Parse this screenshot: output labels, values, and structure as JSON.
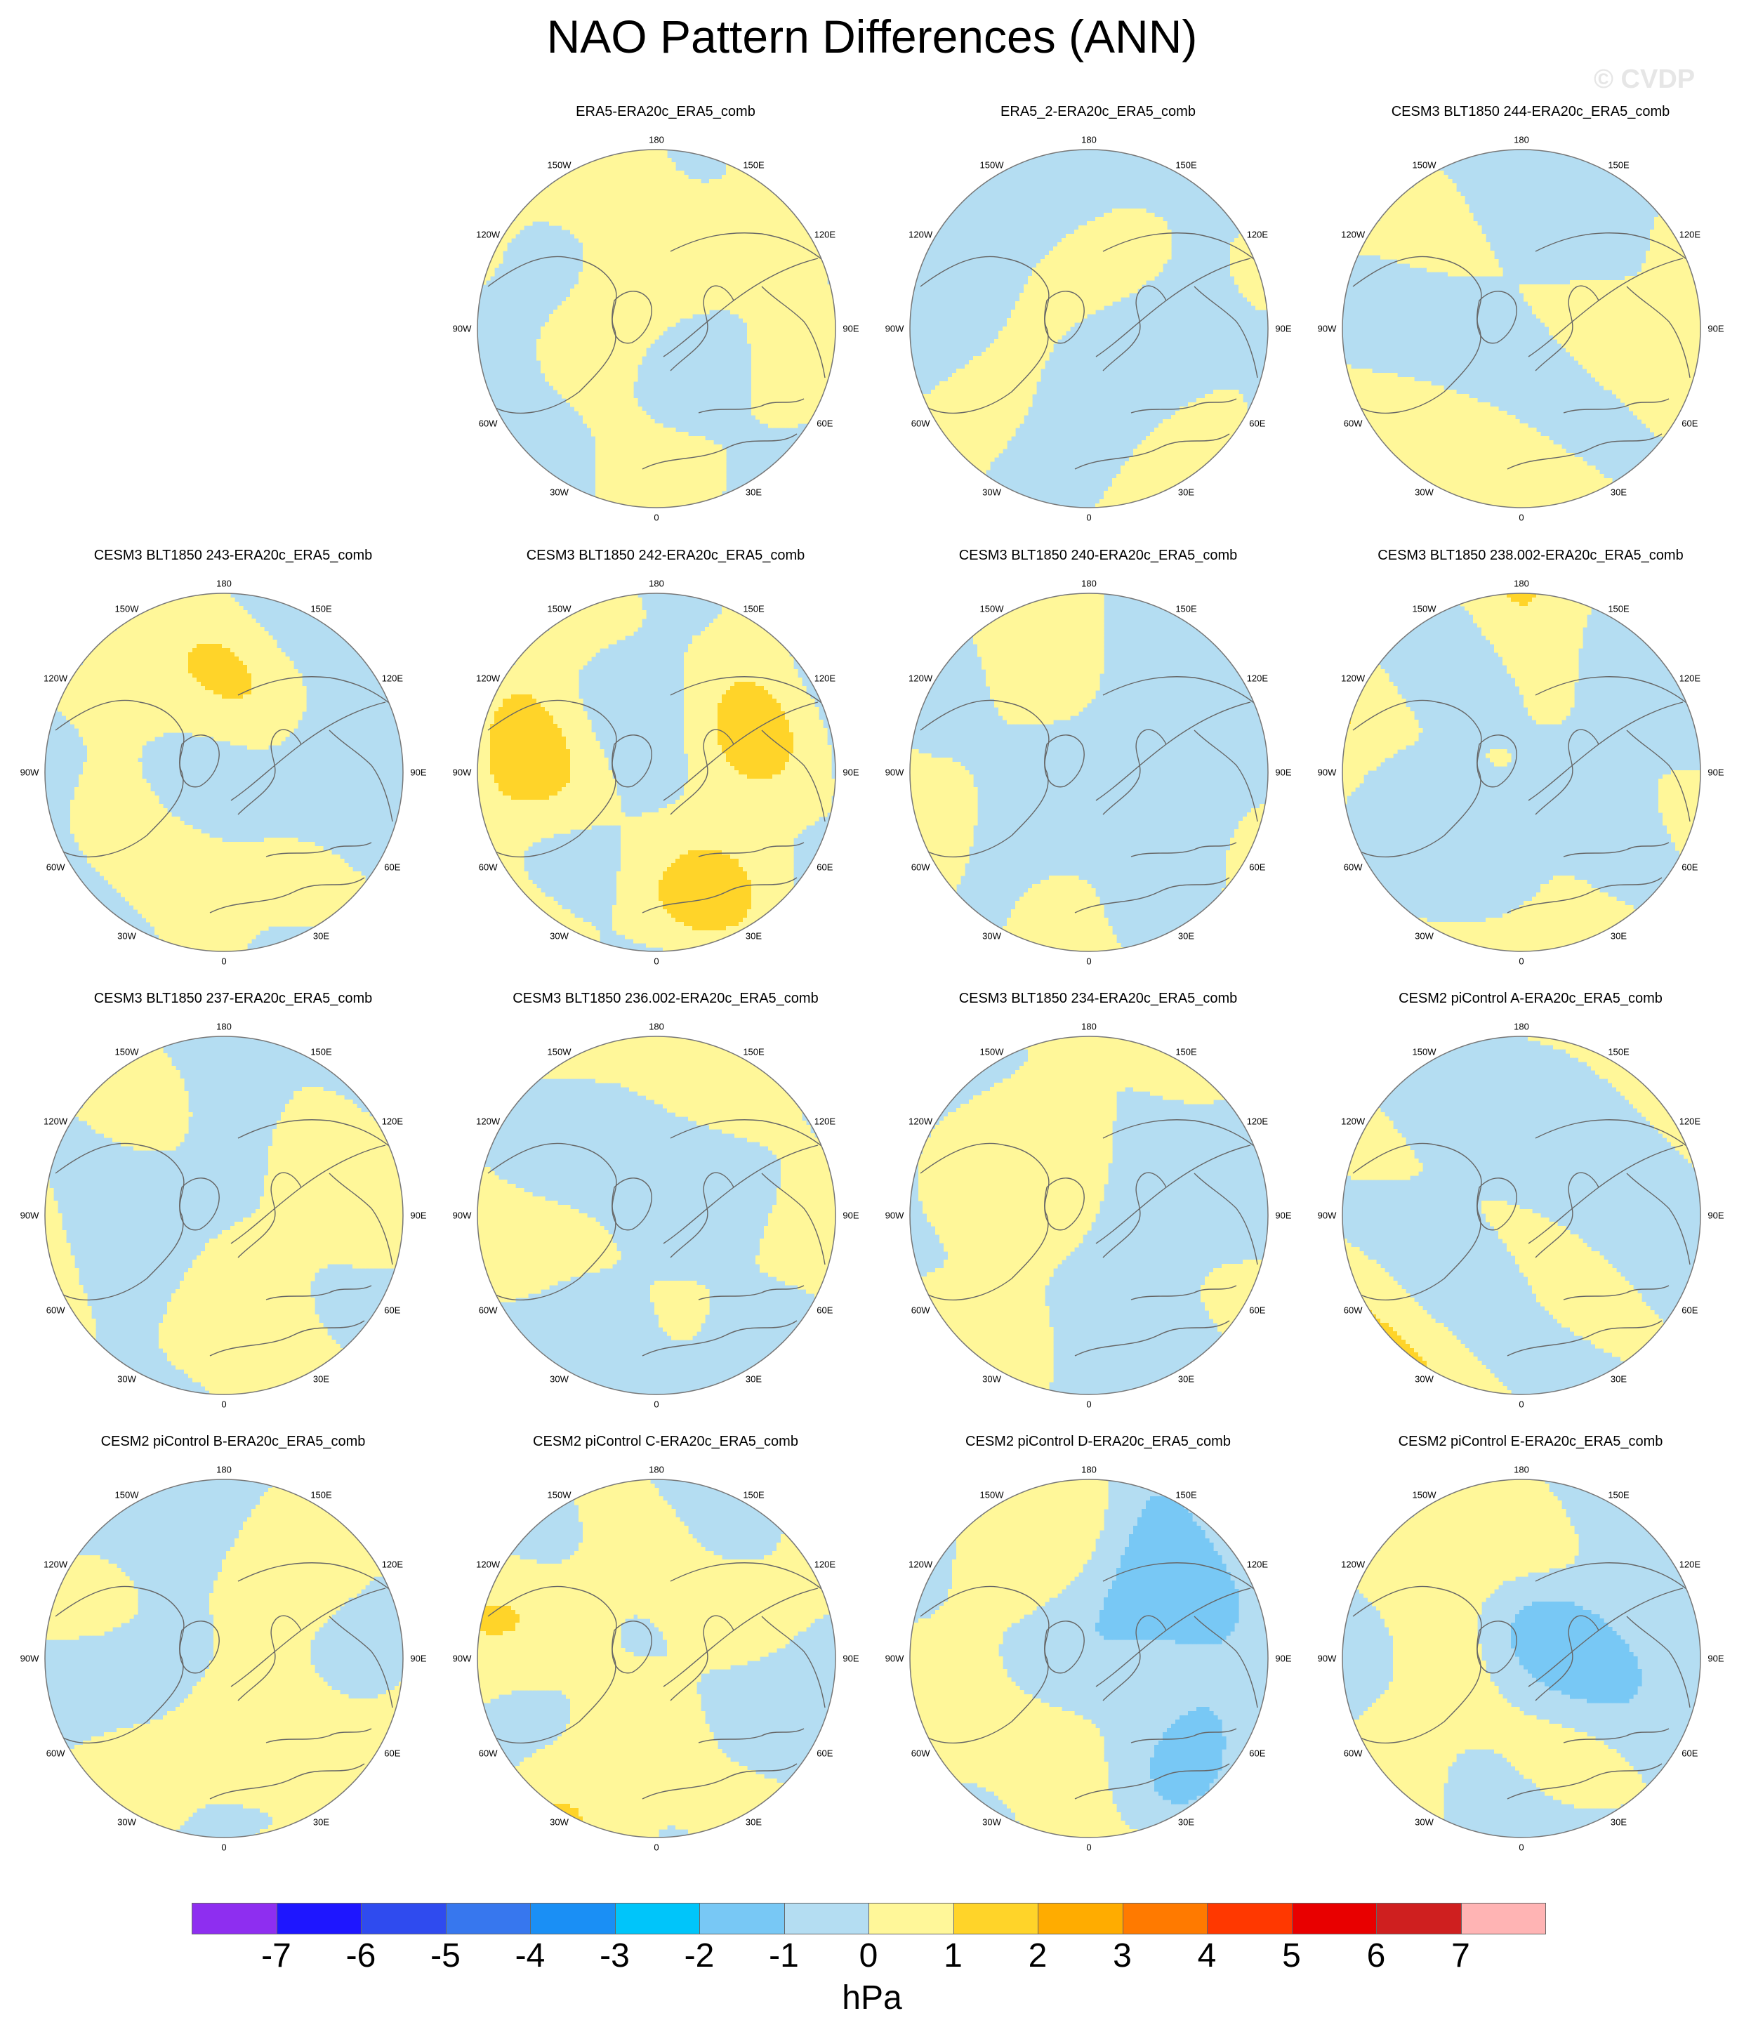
{
  "title": "NAO Pattern Differences (ANN)",
  "watermark": "© CVDP",
  "units": "hPa",
  "longitude_labels": [
    "180",
    "150E",
    "120E",
    "90E",
    "60E",
    "30E",
    "0",
    "30W",
    "60W",
    "90W",
    "120W",
    "150W"
  ],
  "colors": {
    "land_outline": "#666666",
    "frame": "#777777",
    "neg1": "#b4ddf2",
    "neg2": "#78c8f5",
    "pos1": "#fff799",
    "pos2": "#ffd429"
  },
  "colorbar": {
    "levels": [
      "-7",
      "-6",
      "-5",
      "-4",
      "-3",
      "-2",
      "-1",
      "0",
      "1",
      "2",
      "3",
      "4",
      "5",
      "6",
      "7"
    ],
    "colors": [
      "#8e2ef0",
      "#1e16ff",
      "#2f4bef",
      "#3777ee",
      "#1a8ff5",
      "#00c5fa",
      "#78c8f5",
      "#b4ddf2",
      "#fff799",
      "#ffd429",
      "#ffac00",
      "#ff7a00",
      "#ff3800",
      "#e80000",
      "#cf1f1f",
      "#ffb4b4"
    ]
  },
  "panels": [
    {
      "title": "ERA5-ERA20c_ERA5_comb",
      "row": 0,
      "col": 1,
      "seed": 1,
      "bias": 0.1
    },
    {
      "title": "ERA5_2-ERA20c_ERA5_comb",
      "row": 0,
      "col": 2,
      "seed": 2,
      "bias": 0.1
    },
    {
      "title": "CESM3 BLT1850 244-ERA20c_ERA5_comb",
      "row": 0,
      "col": 3,
      "seed": 3,
      "bias": 0.0
    },
    {
      "title": "CESM3 BLT1850 243-ERA20c_ERA5_comb",
      "row": 1,
      "col": 0,
      "seed": 4,
      "bias": 0.15,
      "dark_pos": true
    },
    {
      "title": "CESM3 BLT1850 242-ERA20c_ERA5_comb",
      "row": 1,
      "col": 1,
      "seed": 5,
      "bias": 0.2,
      "dark_pos": true,
      "dark_neg": true
    },
    {
      "title": "CESM3 BLT1850 240-ERA20c_ERA5_comb",
      "row": 1,
      "col": 2,
      "seed": 6,
      "bias": 0.05
    },
    {
      "title": "CESM3 BLT1850 238.002-ERA20c_ERA5_comb",
      "row": 1,
      "col": 3,
      "seed": 7,
      "bias": 0.05,
      "dark_pos": true
    },
    {
      "title": "CESM3 BLT1850 237-ERA20c_ERA5_comb",
      "row": 2,
      "col": 0,
      "seed": 8,
      "bias": 0.1
    },
    {
      "title": "CESM3 BLT1850 236.002-ERA20c_ERA5_comb",
      "row": 2,
      "col": 1,
      "seed": 9,
      "bias": 0.1
    },
    {
      "title": "CESM3 BLT1850 234-ERA20c_ERA5_comb",
      "row": 2,
      "col": 2,
      "seed": 10,
      "bias": 0.05
    },
    {
      "title": "CESM2 piControl A-ERA20c_ERA5_comb",
      "row": 2,
      "col": 3,
      "seed": 11,
      "bias": 0.1,
      "dark_pos": true
    },
    {
      "title": "CESM2 piControl B-ERA20c_ERA5_comb",
      "row": 3,
      "col": 0,
      "seed": 12,
      "bias": 0.15
    },
    {
      "title": "CESM2 piControl C-ERA20c_ERA5_comb",
      "row": 3,
      "col": 1,
      "seed": 13,
      "bias": 0.05,
      "dark_pos": true,
      "dark_neg": true
    },
    {
      "title": "CESM2 piControl D-ERA20c_ERA5_comb",
      "row": 3,
      "col": 2,
      "seed": 14,
      "bias": 0.1,
      "dark_neg": true
    },
    {
      "title": "CESM2 piControl E-ERA20c_ERA5_comb",
      "row": 3,
      "col": 3,
      "seed": 15,
      "bias": 0.1,
      "dark_neg": true
    }
  ]
}
